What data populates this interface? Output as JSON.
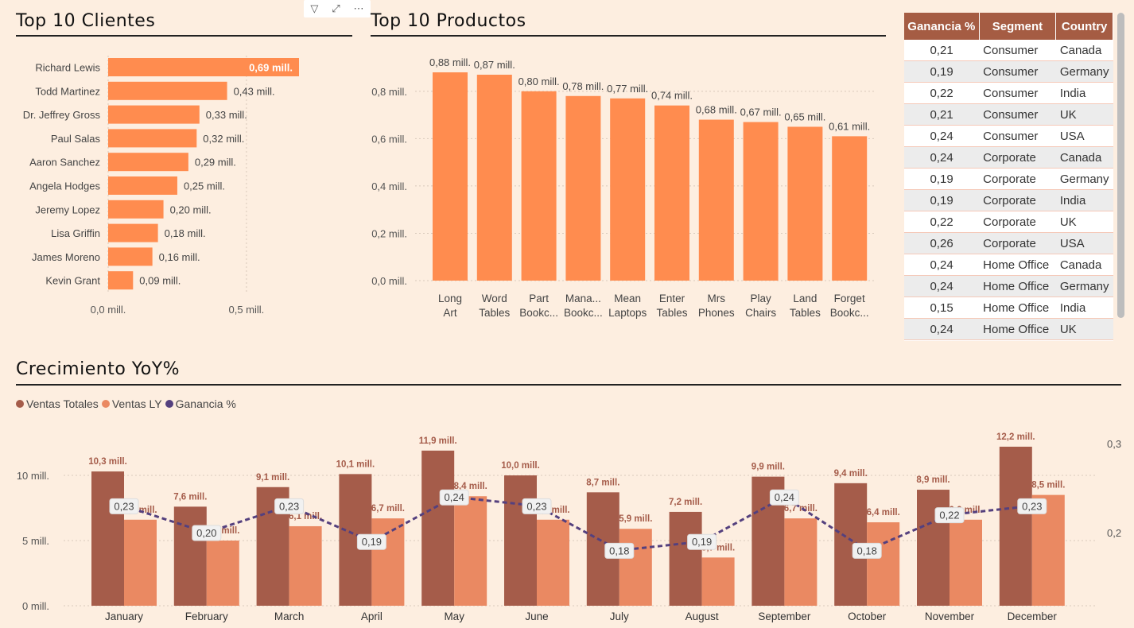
{
  "colors": {
    "bar": "#ff8c4f",
    "ventas_totales": "#a55c4a",
    "ventas_ly": "#ea8962",
    "ganancia": "#54407e",
    "header": "#a55c43"
  },
  "clientes": {
    "title": "Top 10 Clientes",
    "toolbar": {
      "filter_icon": "filter-icon",
      "focus_icon": "focus-mode-icon",
      "more_icon": "more-options-icon"
    },
    "chart_data": {
      "type": "bar",
      "orientation": "horizontal",
      "categories": [
        "Richard Lewis",
        "Todd Martinez",
        "Dr. Jeffrey Gross",
        "Paul Salas",
        "Aaron Sanchez",
        "Angela Hodges",
        "Jeremy Lopez",
        "Lisa Griffin",
        "James Moreno",
        "Kevin Grant"
      ],
      "values": [
        0.69,
        0.43,
        0.33,
        0.32,
        0.29,
        0.25,
        0.2,
        0.18,
        0.16,
        0.09
      ],
      "labels": [
        "0,69 mill.",
        "0,43 mill.",
        "0,33 mill.",
        "0,32 mill.",
        "0,29 mill.",
        "0,25 mill.",
        "0,20 mill.",
        "0,18 mill.",
        "0,16 mill.",
        "0,09 mill."
      ],
      "x_ticks": [
        {
          "v": 0,
          "label": "0,0 mill."
        },
        {
          "v": 0.5,
          "label": "0,5 mill."
        }
      ],
      "xlim": [
        0,
        0.69
      ]
    }
  },
  "productos": {
    "title": "Top 10 Productos",
    "chart_data": {
      "type": "bar",
      "categories": [
        [
          "Long",
          "Art"
        ],
        [
          "Word",
          "Tables"
        ],
        [
          "Part",
          "Bookc..."
        ],
        [
          "Mana...",
          "Bookc..."
        ],
        [
          "Mean",
          "Laptops"
        ],
        [
          "Enter",
          "Tables"
        ],
        [
          "Mrs",
          "Phones"
        ],
        [
          "Play",
          "Chairs"
        ],
        [
          "Land",
          "Tables"
        ],
        [
          "Forget",
          "Bookc..."
        ]
      ],
      "values": [
        0.88,
        0.87,
        0.8,
        0.78,
        0.77,
        0.74,
        0.68,
        0.67,
        0.65,
        0.61
      ],
      "labels": [
        "0,88 mill.",
        "0,87 mill.",
        "0,80 mill.",
        "0,78 mill.",
        "0,77 mill.",
        "0,74 mill.",
        "0,68 mill.",
        "0,67 mill.",
        "0,65 mill.",
        "0,61 mill."
      ],
      "y_ticks": [
        {
          "v": 0,
          "label": "0,0 mill."
        },
        {
          "v": 0.2,
          "label": "0,2 mill."
        },
        {
          "v": 0.4,
          "label": "0,4 mill."
        },
        {
          "v": 0.6,
          "label": "0,6 mill."
        },
        {
          "v": 0.8,
          "label": "0,8 mill."
        }
      ],
      "ylim": [
        0,
        0.88
      ]
    }
  },
  "table": {
    "columns": [
      "Ganancia %",
      "Segment",
      "Country"
    ],
    "rows": [
      [
        "0,21",
        "Consumer",
        "Canada"
      ],
      [
        "0,19",
        "Consumer",
        "Germany"
      ],
      [
        "0,22",
        "Consumer",
        "India"
      ],
      [
        "0,21",
        "Consumer",
        "UK"
      ],
      [
        "0,24",
        "Consumer",
        "USA"
      ],
      [
        "0,24",
        "Corporate",
        "Canada"
      ],
      [
        "0,19",
        "Corporate",
        "Germany"
      ],
      [
        "0,19",
        "Corporate",
        "India"
      ],
      [
        "0,22",
        "Corporate",
        "UK"
      ],
      [
        "0,26",
        "Corporate",
        "USA"
      ],
      [
        "0,24",
        "Home Office",
        "Canada"
      ],
      [
        "0,24",
        "Home Office",
        "Germany"
      ],
      [
        "0,15",
        "Home Office",
        "India"
      ],
      [
        "0,24",
        "Home Office",
        "UK"
      ]
    ]
  },
  "yoy": {
    "title": "Crecimiento YoY%",
    "legend": [
      "Ventas Totales",
      "Ventas LY",
      "Ganancia %"
    ],
    "chart_data": {
      "type": "bar+line",
      "categories": [
        "January",
        "February",
        "March",
        "April",
        "May",
        "June",
        "July",
        "August",
        "September",
        "October",
        "November",
        "December"
      ],
      "series": [
        {
          "name": "Ventas Totales",
          "values": [
            10.3,
            7.6,
            9.1,
            10.1,
            11.9,
            10.0,
            8.7,
            7.2,
            9.9,
            9.4,
            8.9,
            12.2
          ],
          "labels": [
            "10,3 mill.",
            "7,6 mill.",
            "9,1 mill.",
            "10,1 mill.",
            "11,9 mill.",
            "10,0 mill.",
            "8,7 mill.",
            "7,2 mill.",
            "9,9 mill.",
            "9,4 mill.",
            "8,9 mill.",
            "12,2 mill."
          ]
        },
        {
          "name": "Ventas LY",
          "values": [
            6.6,
            5.0,
            6.1,
            6.7,
            8.4,
            6.6,
            5.9,
            3.7,
            6.7,
            6.4,
            6.6,
            8.5
          ],
          "labels": [
            "6,6 mill.",
            "5,0 mill.",
            "6,1 mill.",
            "6,7 mill.",
            "8,4 mill.",
            "6,6 mill.",
            "5,9 mill.",
            "3,7 mill.",
            "6,7 mill.",
            "6,4 mill.",
            "6,6 mill.",
            "8,5 mill."
          ]
        },
        {
          "name": "Ganancia %",
          "values": [
            0.23,
            0.2,
            0.23,
            0.19,
            0.24,
            0.23,
            0.18,
            0.19,
            0.24,
            0.18,
            0.22,
            0.23
          ],
          "labels": [
            "0,23",
            "0,20",
            "0,23",
            "0,19",
            "0,24",
            "0,23",
            "0,18",
            "0,19",
            "0,24",
            "0,18",
            "0,22",
            "0,23"
          ],
          "axis": "right"
        }
      ],
      "y_ticks": [
        {
          "v": 0,
          "label": "0 mill."
        },
        {
          "v": 5,
          "label": "5 mill."
        },
        {
          "v": 10,
          "label": "10 mill."
        }
      ],
      "ylim": [
        0,
        12.2
      ],
      "y2_ticks": [
        {
          "v": 0.2,
          "label": "0,2"
        },
        {
          "v": 0.3,
          "label": "0,3"
        }
      ]
    }
  }
}
